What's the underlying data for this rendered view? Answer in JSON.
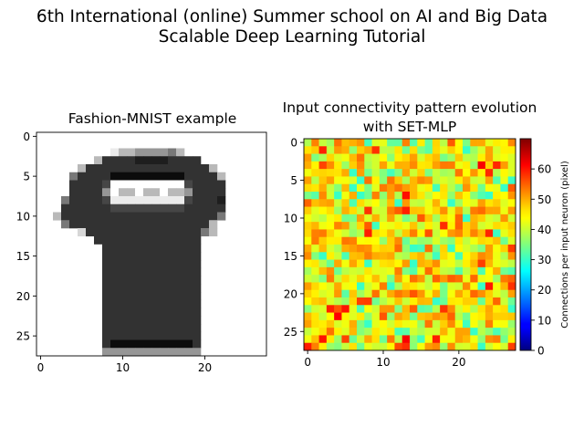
{
  "figure": {
    "suptitle_line1": "6th International (online) Summer school on AI and Big Data",
    "suptitle_line2": "Scalable Deep Learning Tutorial"
  },
  "chart_data": [
    {
      "type": "heatmap",
      "title": "Fashion-MNIST example",
      "colormap": "grayscale (high value = dark)",
      "grid": false,
      "xlim": [
        -0.5,
        27.5
      ],
      "ylim": [
        27.5,
        -0.5
      ],
      "xticks": [
        0,
        10,
        20
      ],
      "yticks": [
        0,
        5,
        10,
        15,
        20,
        25
      ],
      "rows": [
        "                            ",
        "                            ",
        "         133777743          ",
        "       3555566665555        ",
        "     35555555555555553      ",
        "    4555599999999955553     ",
        "    5555800000000085555     ",
        "    5555703303303375555     ",
        "   45555811111111185556     ",
        "   55555588888888855555     ",
        "  355555555555555555554     ",
        "   4555555555555555553      ",
        "     25555555555555543      ",
        "       5555555555555        ",
        "        555555555555        ",
        "        555555555555        ",
        "        555555555555        ",
        "        555555555555        ",
        "        555555555555        ",
        "        555555555555        ",
        "        555555555555        ",
        "        555555555555        ",
        "        555555555555        ",
        "        555555555555        ",
        "        555555555555        ",
        "        555555555555        ",
        "        599999999995        ",
        "        777777777777        "
      ]
    },
    {
      "type": "heatmap",
      "title": "Input connectivity pattern evolution",
      "title_line2": "with SET-MLP",
      "colormap": "jet",
      "grid": false,
      "xlim": [
        -0.5,
        27.5
      ],
      "ylim": [
        27.5,
        -0.5
      ],
      "xticks": [
        0,
        10,
        20
      ],
      "yticks": [
        0,
        5,
        10,
        15,
        20,
        25
      ],
      "colorbar": {
        "label": "Connections per input neuron (pixel)",
        "range": [
          0,
          70
        ],
        "ticks": [
          0,
          10,
          20,
          30,
          40,
          50,
          60
        ]
      },
      "rows_description": "28x28 grid of per-pixel connection counts, values roughly 30-68, mostly 38-52",
      "values_seed": 20240701,
      "values_mean": 44,
      "values_spread": 7
    }
  ]
}
